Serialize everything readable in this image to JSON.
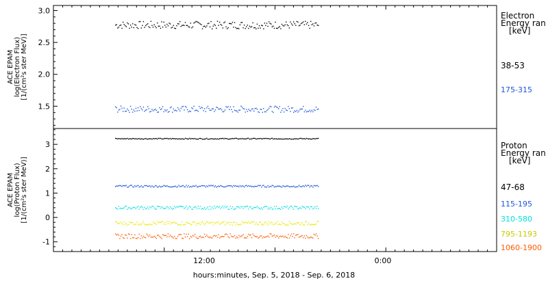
{
  "chart_data": [
    {
      "type": "scatter",
      "panel": "electron",
      "ylabel_lines": [
        "ACE EPAM",
        "log(Electron Flux)",
        "[1/(cm²s ster MeV)]"
      ],
      "ylim": [
        1.15,
        3.08
      ],
      "yticks": [
        1.5,
        2.0,
        2.5,
        3.0
      ],
      "ytick_labels": [
        "1.5",
        "2.0",
        "2.5",
        "3.0"
      ],
      "legend_title": [
        "Electron",
        "Energy ran",
        "[keV]"
      ],
      "series": [
        {
          "name": "38-53",
          "color": "#000000",
          "level": 2.78,
          "spread": 0.06
        },
        {
          "name": "175-315",
          "color": "#1a56d6",
          "level": 1.46,
          "spread": 0.05
        }
      ]
    },
    {
      "type": "scatter",
      "panel": "proton",
      "ylabel_lines": [
        "ACE EPAM",
        "log(Proton Flux)",
        "[1/(cm²s ster MeV)]"
      ],
      "ylim": [
        -1.4,
        3.65
      ],
      "yticks": [
        -1,
        0,
        1,
        2,
        3
      ],
      "ytick_labels": [
        "-1",
        "0",
        "1",
        "2",
        "3"
      ],
      "legend_title": [
        "Proton",
        "Energy ran",
        "[keV]"
      ],
      "series": [
        {
          "name": "47-68",
          "color": "#000000",
          "level": 3.25,
          "spread": 0.02
        },
        {
          "name": "115-195",
          "color": "#1a56d6",
          "level": 1.3,
          "spread": 0.04
        },
        {
          "name": "310-580",
          "color": "#00e0e0",
          "level": 0.42,
          "spread": 0.07
        },
        {
          "name": "795-1193",
          "color": "#e8e800",
          "level": -0.22,
          "spread": 0.08
        },
        {
          "name": "1060-1900",
          "color": "#ff5a00",
          "level": -0.75,
          "spread": 0.1
        }
      ]
    }
  ],
  "time_axis": {
    "tick_labels": [
      "12:00",
      "0:00"
    ],
    "xlabel": "hours:minutes, Sep.  5, 2018 - Sep.  6, 2018"
  }
}
